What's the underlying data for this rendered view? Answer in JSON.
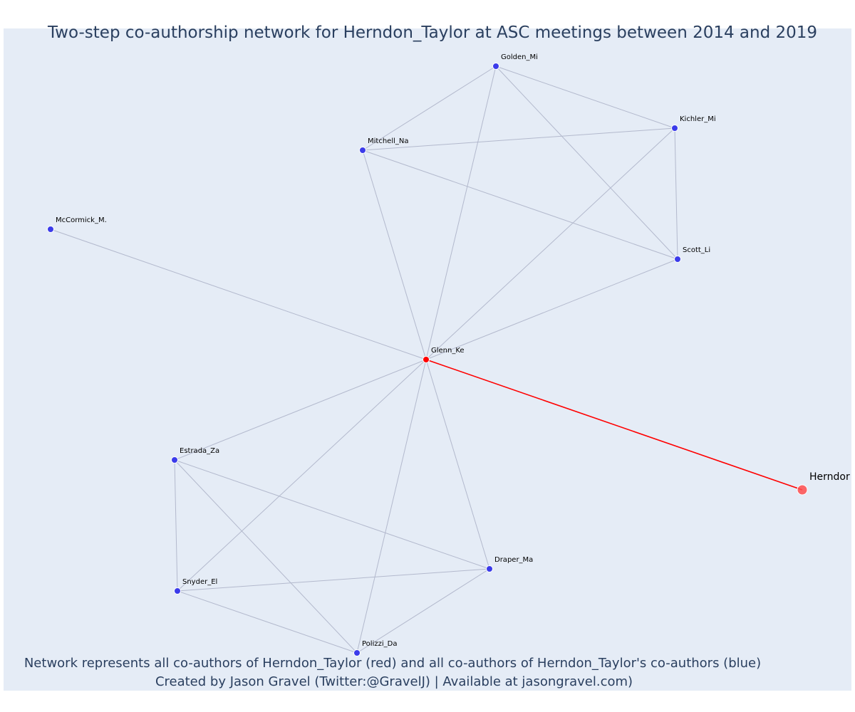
{
  "title": "Two-step co-authorship network for Herndon_Taylor at ASC meetings between 2014 and 2019",
  "caption": {
    "line1": "Network represents all co-authors of Herndon_Taylor (red) and all co-authors of Herndon_Taylor's co-authors (blue)",
    "line2": "Created by Jason Gravel (Twitter:@GravelJ) | Available at jasongravel.com)"
  },
  "colors": {
    "background": "#e5ecf6",
    "edge": "#b3b9cd",
    "focal_edge": "#ff0000",
    "coauthor_node": "#ff0000",
    "two_step_node": "#3b3bea",
    "focal_node": "#ff4d4d",
    "node_outline": "#ffffff",
    "text": "#2a3f5f"
  },
  "nodes": [
    {
      "id": "Golden_Mi",
      "label": "Golden_Mi",
      "group": "two-step"
    },
    {
      "id": "Kichler_Mi",
      "label": "Kichler_Mi",
      "group": "two-step"
    },
    {
      "id": "Mitchell_Na",
      "label": "Mitchell_Na",
      "group": "two-step"
    },
    {
      "id": "McCormick_M.",
      "label": "McCormick_M.",
      "group": "two-step"
    },
    {
      "id": "Scott_Li",
      "label": "Scott_Li",
      "group": "two-step"
    },
    {
      "id": "Glenn_Ke",
      "label": "Glenn_Ke",
      "group": "co-author"
    },
    {
      "id": "Herndon",
      "label": "Herndor",
      "group": "focal"
    },
    {
      "id": "Estrada_Za",
      "label": "Estrada_Za",
      "group": "two-step"
    },
    {
      "id": "Draper_Ma",
      "label": "Draper_Ma",
      "group": "two-step"
    },
    {
      "id": "Snyder_El",
      "label": "Snyder_El",
      "group": "two-step"
    },
    {
      "id": "Polizzi_Da",
      "label": "Polizzi_Da",
      "group": "two-step"
    }
  ],
  "edges": [
    [
      "Golden_Mi",
      "Mitchell_Na"
    ],
    [
      "Golden_Mi",
      "Kichler_Mi"
    ],
    [
      "Golden_Mi",
      "Scott_Li"
    ],
    [
      "Golden_Mi",
      "Glenn_Ke"
    ],
    [
      "Mitchell_Na",
      "Kichler_Mi"
    ],
    [
      "Mitchell_Na",
      "Scott_Li"
    ],
    [
      "Mitchell_Na",
      "Glenn_Ke"
    ],
    [
      "Kichler_Mi",
      "Scott_Li"
    ],
    [
      "Kichler_Mi",
      "Glenn_Ke"
    ],
    [
      "Scott_Li",
      "Glenn_Ke"
    ],
    [
      "McCormick_M.",
      "Glenn_Ke"
    ],
    [
      "Glenn_Ke",
      "Estrada_Za"
    ],
    [
      "Glenn_Ke",
      "Snyder_El"
    ],
    [
      "Glenn_Ke",
      "Polizzi_Da"
    ],
    [
      "Glenn_Ke",
      "Draper_Ma"
    ],
    [
      "Estrada_Za",
      "Snyder_El"
    ],
    [
      "Estrada_Za",
      "Polizzi_Da"
    ],
    [
      "Estrada_Za",
      "Draper_Ma"
    ],
    [
      "Snyder_El",
      "Draper_Ma"
    ],
    [
      "Snyder_El",
      "Polizzi_Da"
    ],
    [
      "Polizzi_Da",
      "Draper_Ma"
    ]
  ],
  "focal_edges": [
    [
      "Glenn_Ke",
      "Herndon"
    ]
  ]
}
